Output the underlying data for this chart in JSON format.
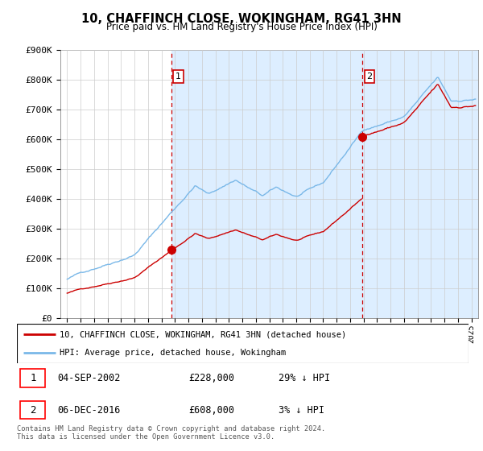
{
  "title": "10, CHAFFINCH CLOSE, WOKINGHAM, RG41 3HN",
  "subtitle": "Price paid vs. HM Land Registry's House Price Index (HPI)",
  "ylim": [
    0,
    900000
  ],
  "yticks": [
    0,
    100000,
    200000,
    300000,
    400000,
    500000,
    600000,
    700000,
    800000,
    900000
  ],
  "ytick_labels": [
    "£0",
    "£100K",
    "£200K",
    "£300K",
    "£400K",
    "£500K",
    "£600K",
    "£700K",
    "£800K",
    "£900K"
  ],
  "hpi_color": "#7ab8e8",
  "price_color": "#cc0000",
  "dashed_color": "#cc0000",
  "bg_color_right": "#ddeeff",
  "bg_color_left": "#ffffff",
  "transaction1": {
    "date_x": 2002.75,
    "price": 228000,
    "label": "1"
  },
  "transaction2": {
    "date_x": 2016.92,
    "price": 608000,
    "label": "2"
  },
  "legend_entry1": "10, CHAFFINCH CLOSE, WOKINGHAM, RG41 3HN (detached house)",
  "legend_entry2": "HPI: Average price, detached house, Wokingham",
  "table_row1": [
    "1",
    "04-SEP-2002",
    "£228,000",
    "29% ↓ HPI"
  ],
  "table_row2": [
    "2",
    "06-DEC-2016",
    "£608,000",
    "3% ↓ HPI"
  ],
  "footer": "Contains HM Land Registry data © Crown copyright and database right 2024.\nThis data is licensed under the Open Government Licence v3.0.",
  "xmin": 1994.5,
  "xmax": 2025.5,
  "hpi_start_year": 1995.0,
  "hpi_end_year": 2025.3,
  "scale1": 0.71,
  "scale2": 0.97
}
